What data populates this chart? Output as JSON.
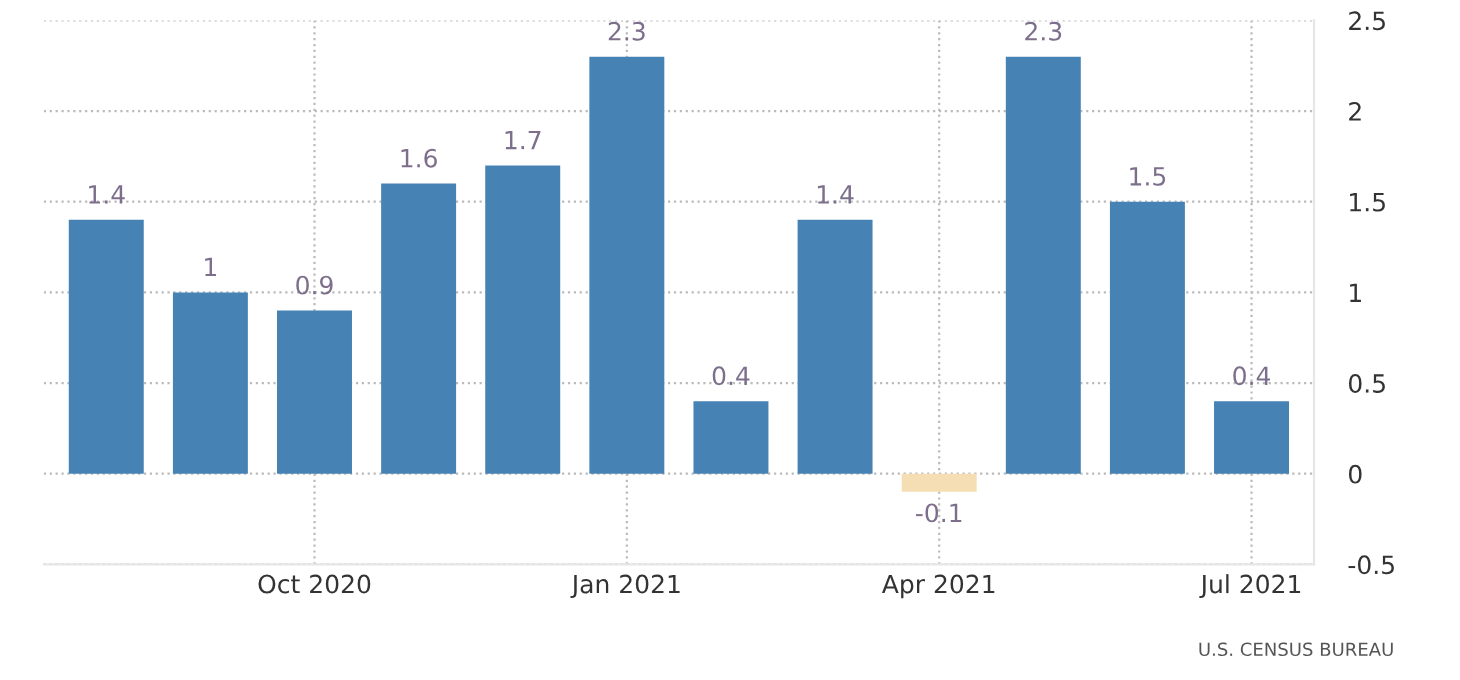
{
  "chart_data": {
    "type": "bar",
    "categories": [
      null,
      null,
      "Oct 2020",
      null,
      null,
      "Jan 2021",
      null,
      null,
      "Apr 2021",
      null,
      null,
      "Jul 2021"
    ],
    "values": [
      1.4,
      1,
      0.9,
      1.6,
      1.7,
      2.3,
      0.4,
      1.4,
      -0.1,
      2.3,
      1.5,
      0.4
    ],
    "colors": [
      "#4682b4",
      "#4682b4",
      "#4682b4",
      "#4682b4",
      "#4682b4",
      "#4682b4",
      "#4682b4",
      "#4682b4",
      "#f5deb3",
      "#4682b4",
      "#4682b4",
      "#4682b4"
    ],
    "ylim": [
      -0.5,
      2.5
    ],
    "yticks": [
      -0.5,
      0,
      0.5,
      1,
      1.5,
      2,
      2.5
    ],
    "grid": true,
    "data_labels": true,
    "annotations": [
      "U.S. CENSUS BUREAU"
    ]
  }
}
